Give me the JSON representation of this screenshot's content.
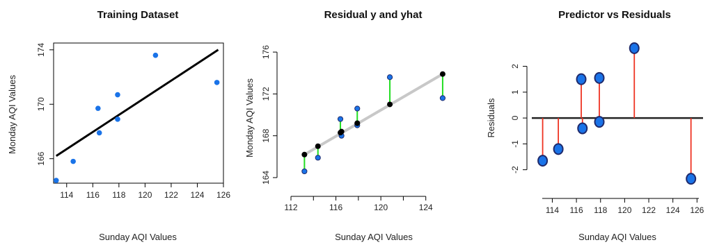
{
  "colors": {
    "point_blue": "#1a73e8",
    "point_dark_outline": "#1f2a6b",
    "fit_line": "#000000",
    "reg_line_grey": "#c8c8c8",
    "residual_green": "#22dd22",
    "residual_red": "#ee3322"
  },
  "chart_data": [
    {
      "type": "scatter",
      "title": "Training Dataset",
      "xlabel": "Sunday AQI  Values",
      "ylabel": "Monday AQI  Values",
      "xlim": [
        113,
        126
      ],
      "ylim": [
        164.2,
        174.5
      ],
      "xticks": [
        114,
        116,
        118,
        120,
        122,
        124,
        126
      ],
      "yticks": [
        166,
        170,
        174
      ],
      "series": [
        {
          "values": [
            [
              113.2,
              164.4
            ],
            [
              114.5,
              165.8
            ],
            [
              116.4,
              169.7
            ],
            [
              116.5,
              167.9
            ],
            [
              117.9,
              170.7
            ],
            [
              117.9,
              168.9
            ],
            [
              120.8,
              173.6
            ],
            [
              125.5,
              171.6
            ]
          ]
        }
      ],
      "fit_line": [
        [
          113.2,
          166.2
        ],
        [
          125.6,
          174.0
        ]
      ],
      "grid": false,
      "frame": true
    },
    {
      "type": "scatter",
      "title": "Residual y and yhat",
      "xlabel": "Sunday AQI  Values",
      "ylabel": "Monday AQI  Values",
      "xlim": [
        112,
        126
      ],
      "ylim": [
        163.6,
        177
      ],
      "xticks": [
        112,
        116,
        120,
        124
      ],
      "xticks_minor": [
        114,
        118,
        122
      ],
      "yticks": [
        164,
        168,
        172,
        176
      ],
      "series": [
        {
          "values": [
            [
              113.2,
              164.6
            ],
            [
              114.4,
              165.9
            ],
            [
              116.4,
              169.6
            ],
            [
              116.5,
              168.0
            ],
            [
              117.9,
              170.6
            ],
            [
              117.9,
              169.0
            ],
            [
              120.8,
              173.6
            ],
            [
              125.5,
              171.6
            ]
          ]
        }
      ],
      "fitted": [
        [
          113.2,
          166.2
        ],
        [
          114.4,
          167.0
        ],
        [
          116.4,
          168.3
        ],
        [
          116.5,
          168.4
        ],
        [
          117.9,
          169.2
        ],
        [
          117.9,
          169.2
        ],
        [
          120.8,
          171.0
        ],
        [
          125.5,
          173.9
        ]
      ],
      "grid": false,
      "frame": false
    },
    {
      "type": "scatter",
      "title": "Predictor vs Residuals",
      "xlabel": "Sunday AQI  Values",
      "ylabel": "Residuals",
      "xlim": [
        112.3,
        126.5
      ],
      "ylim": [
        -2.6,
        2.9
      ],
      "xticks": [
        114,
        116,
        118,
        120,
        122,
        124,
        126
      ],
      "yticks": [
        -2,
        -1,
        0,
        1,
        2
      ],
      "series": [
        {
          "values": [
            [
              113.2,
              -1.65
            ],
            [
              114.5,
              -1.2
            ],
            [
              116.4,
              1.5
            ],
            [
              116.5,
              -0.4
            ],
            [
              117.9,
              1.55
            ],
            [
              117.9,
              -0.15
            ],
            [
              120.8,
              2.7
            ],
            [
              125.5,
              -2.35
            ]
          ]
        }
      ],
      "zero_line": 0,
      "grid": false,
      "frame": false
    }
  ]
}
